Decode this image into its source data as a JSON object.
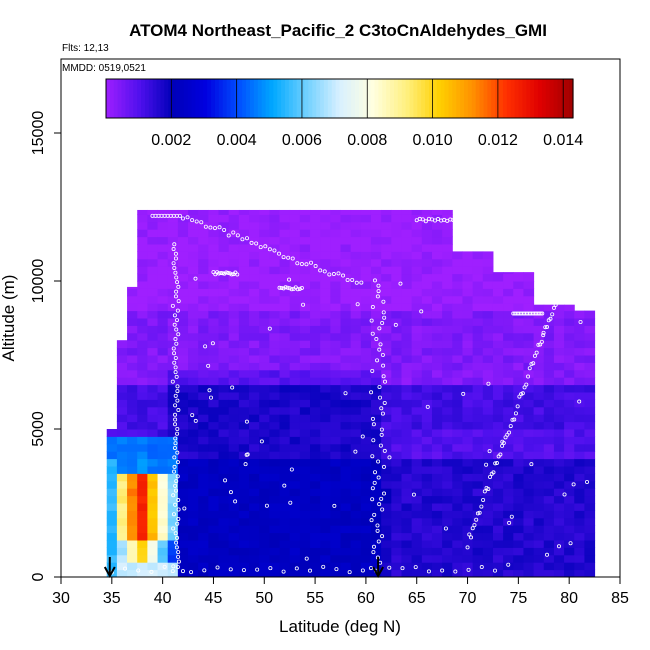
{
  "chart_data": {
    "type": "heatmap",
    "title": "ATOM4 Northeast_Pacific_2 C3toCnAldehydes_GMI",
    "flights_label": "Flts: 12,13",
    "date_label": "MMDD: 0519,0521",
    "xlabel": "Latitude (deg N)",
    "ylabel": "Altitude (m)",
    "xlim": [
      30,
      85
    ],
    "ylim": [
      0,
      17500
    ],
    "xticks": [
      "30",
      "35",
      "40",
      "45",
      "50",
      "55",
      "60",
      "65",
      "70",
      "75",
      "80",
      "85"
    ],
    "yticks": [
      "0",
      "5000",
      "10000",
      "15000"
    ],
    "colorbar": {
      "range": [
        0.0,
        0.0143
      ],
      "ticks": [
        "0.002",
        "0.004",
        "0.006",
        "0.008",
        "0.010",
        "0.012",
        "0.014"
      ],
      "colors": [
        "#9f1fff",
        "#5010ee",
        "#0000b8",
        "#0000e0",
        "#0050ff",
        "#00a8ff",
        "#6fd0ff",
        "#d8f0ff",
        "#ffffe0",
        "#fff080",
        "#ffd000",
        "#ff9000",
        "#ff3000",
        "#e00000",
        "#a00000"
      ]
    },
    "markers": [
      34.8,
      61.2
    ],
    "grid": false,
    "legend": "none"
  }
}
